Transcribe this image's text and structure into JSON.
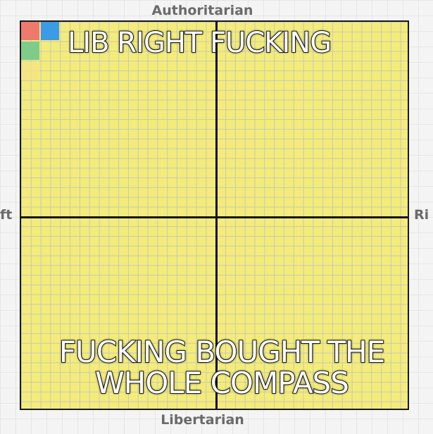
{
  "axes": {
    "top": "Authoritarian",
    "bottom": "Libertarian",
    "left": "ft",
    "right": "Ri"
  },
  "caption": {
    "top": "LIB RIGHT FUCKING",
    "bottom_line1": "FUCKING BOUGHT THE",
    "bottom_line2": "WHOLE COMPASS"
  },
  "colors": {
    "compass_fill": "#f3ec7a",
    "square_red": "#ee7a6e",
    "square_blue": "#3b9be6",
    "square_green": "#7fcc8a"
  }
}
